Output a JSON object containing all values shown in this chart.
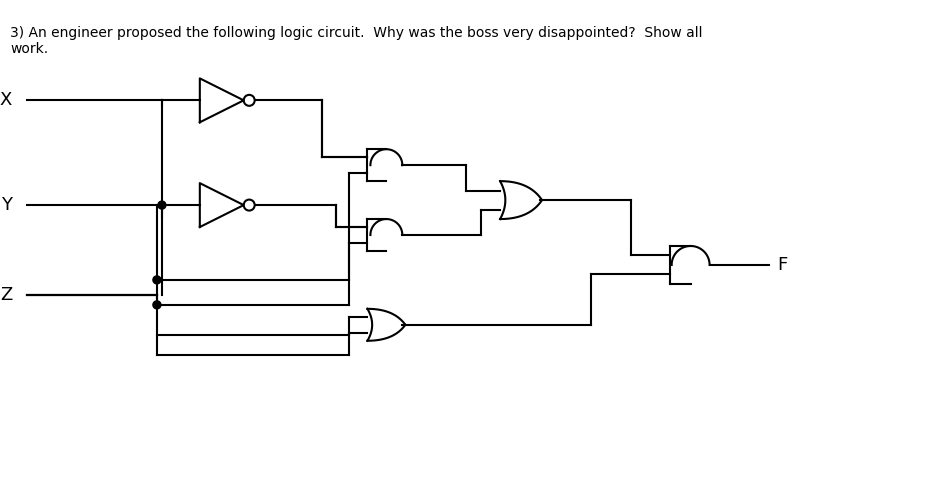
{
  "title_text": "3) An engineer proposed the following logic circuit.  Why was the boss very disappointed?  Show all\nwork.",
  "bg_color": "#ffffff",
  "line_color": "#000000",
  "label_color": "#000000",
  "inputs": [
    "X",
    "Y",
    "Z"
  ],
  "figsize": [
    9.52,
    4.8
  ],
  "dpi": 100
}
